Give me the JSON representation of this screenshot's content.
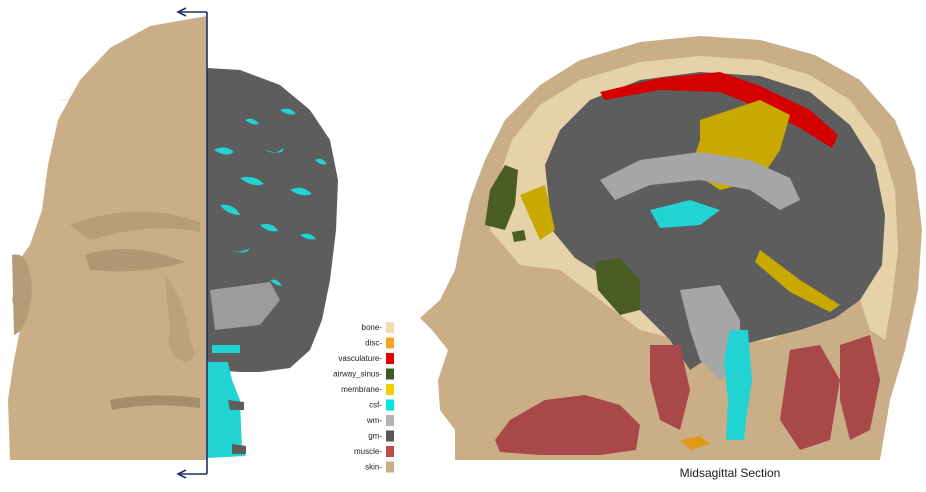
{
  "caption": "Midsagittal Section",
  "legend": {
    "items": [
      {
        "label": "bone",
        "color": "#f2dcb3"
      },
      {
        "label": "disc",
        "color": "#f5a623"
      },
      {
        "label": "vasculature",
        "color": "#e00000"
      },
      {
        "label": "airway_sinus",
        "color": "#3d5a1f"
      },
      {
        "label": "membrane",
        "color": "#f2d000"
      },
      {
        "label": "csf",
        "color": "#00e5e5"
      },
      {
        "label": "wm",
        "color": "#b3b3b3"
      },
      {
        "label": "gm",
        "color": "#595959"
      },
      {
        "label": "muscle",
        "color": "#c24a4a"
      },
      {
        "label": "skin",
        "color": "#c9ae87"
      }
    ]
  },
  "colors": {
    "skin": "#c9ae87",
    "bone": "#e6d2a8",
    "gm": "#5d5d5d",
    "wm": "#a6a6a6",
    "csf": "#22d3d3",
    "membrane": "#c9a800",
    "vasculature": "#d40000",
    "airway": "#4a5e23",
    "muscle": "#a84848",
    "disc": "#e09a1a",
    "axis": "#1f2f6b"
  }
}
